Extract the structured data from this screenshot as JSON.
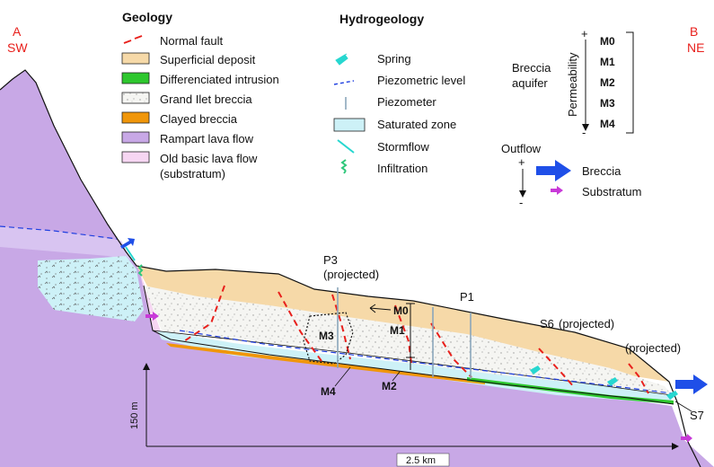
{
  "section": {
    "start": {
      "letter": "A",
      "direction": "SW"
    },
    "end": {
      "letter": "B",
      "direction": "NE"
    }
  },
  "colors": {
    "superficial": "#f6d9a8",
    "intrusion": "#2ec72e",
    "breccia": "#f4f4f0",
    "clayed": "#f0960a",
    "rampart": "#c8a8e6",
    "basic": "#f6d6f2",
    "saturated": "#cdf1f7",
    "fault": "#e8201c",
    "spring": "#27d7d0",
    "piezometric": "#1f3fe0",
    "outflow_breccia": "#1f4fe8",
    "outflow_substratum": "#c83ad8"
  },
  "legend": {
    "geology": {
      "title": "Geology",
      "items": [
        {
          "key": "fault",
          "label": "Normal fault",
          "icon": "fault-line-icon"
        },
        {
          "key": "superficial",
          "label": "Superficial deposit",
          "icon": "superficial-deposit-swatch"
        },
        {
          "key": "intrusion",
          "label": "Differenciated intrusion",
          "icon": "intrusion-swatch"
        },
        {
          "key": "breccia",
          "label": "Grand Ilet breccia",
          "icon": "breccia-swatch"
        },
        {
          "key": "clayed",
          "label": "Clayed breccia",
          "icon": "clayed-breccia-swatch"
        },
        {
          "key": "rampart",
          "label": "Rampart lava flow",
          "icon": "rampart-lava-swatch"
        },
        {
          "key": "basic",
          "label": "Old basic lava flow",
          "label2": "(substratum)",
          "icon": "basic-lava-swatch"
        }
      ]
    },
    "hydrogeology": {
      "title": "Hydrogeology",
      "items": [
        {
          "label": "Spring",
          "icon": "spring-icon"
        },
        {
          "label": "Piezometric level",
          "icon": "piezometric-level-icon"
        },
        {
          "label": "Piezometer",
          "icon": "piezometer-icon"
        },
        {
          "label": "Saturated zone",
          "icon": "saturated-zone-swatch"
        },
        {
          "label": "Stormflow",
          "icon": "stormflow-icon"
        },
        {
          "label": "Infiltration",
          "icon": "infiltration-icon"
        }
      ]
    },
    "permeability": {
      "aquifer_line1": "Breccia",
      "aquifer_line2": "aquifer",
      "axis_label": "Permeability",
      "plus": "+",
      "minus": "-",
      "levels": [
        "M0",
        "M1",
        "M2",
        "M3",
        "M4"
      ]
    },
    "outflow": {
      "title": "Outflow",
      "plus": "+",
      "minus": "-",
      "items": [
        {
          "label": "Breccia",
          "icon": "breccia-outflow-arrow-icon"
        },
        {
          "label": "Substratum",
          "icon": "substratum-outflow-arrow-icon"
        }
      ]
    }
  },
  "section_labels": {
    "p3_line1": "P3",
    "p3_line2": "(projected)",
    "p1": "P1",
    "s6": "S6",
    "s6_note": "(projected)",
    "projected": "(projected)",
    "s7": "S7",
    "m0": "M0",
    "m1": "M1",
    "m2": "M2",
    "m3": "M3",
    "m4": "M4"
  },
  "scale": {
    "vertical": "150 m",
    "horizontal": "2.5 km"
  }
}
